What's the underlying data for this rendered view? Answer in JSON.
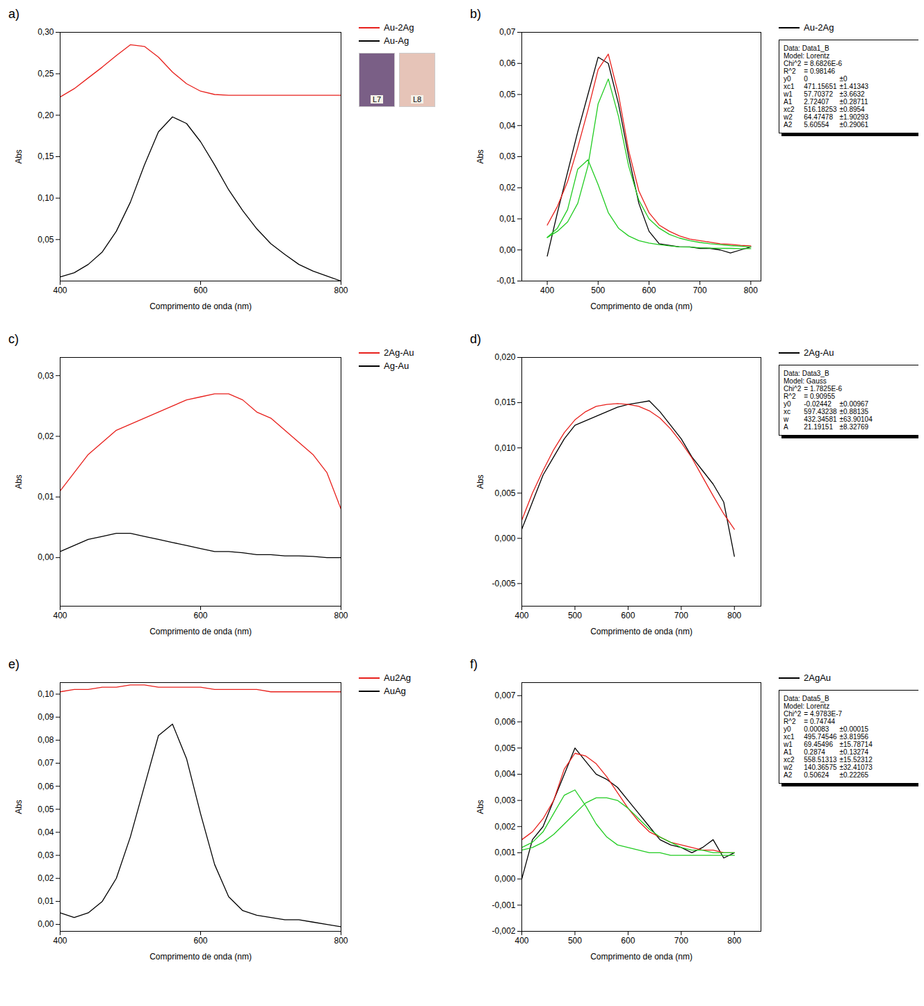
{
  "chart_data": [
    {
      "type": "line",
      "panel": "a)",
      "x_label": "Comprimento de onda (nm)",
      "y_label": "Abs",
      "legend": "right",
      "inset": {
        "labels": [
          "L7",
          "L8"
        ]
      },
      "x": [
        400,
        420,
        440,
        460,
        480,
        500,
        520,
        540,
        560,
        580,
        600,
        620,
        640,
        660,
        680,
        700,
        720,
        740,
        760,
        780,
        800
      ],
      "xlim": [
        400,
        800
      ],
      "xticks": [
        400,
        600,
        800
      ],
      "ylim": [
        0,
        0.3
      ],
      "yticks": [
        {
          "value": 0.05,
          "label": "0,05"
        },
        {
          "value": 0.1,
          "label": "0,10"
        },
        {
          "value": 0.15,
          "label": "0,15"
        },
        {
          "value": 0.2,
          "label": "0,20"
        },
        {
          "value": 0.25,
          "label": "0,25"
        },
        {
          "value": 0.3,
          "label": "0,30"
        }
      ],
      "series": [
        {
          "name": "Au-2Ag",
          "color": "#e8201c",
          "values": [
            0.222,
            0.232,
            0.245,
            0.258,
            0.272,
            0.285,
            0.283,
            0.27,
            0.252,
            0.238,
            0.229,
            0.225,
            0.224,
            0.224,
            0.224,
            0.224,
            0.224,
            0.224,
            0.224,
            0.224,
            0.224
          ]
        },
        {
          "name": "Au-Ag",
          "color": "#000000",
          "values": [
            0.005,
            0.01,
            0.02,
            0.035,
            0.06,
            0.095,
            0.14,
            0.18,
            0.198,
            0.19,
            0.168,
            0.14,
            0.11,
            0.085,
            0.063,
            0.045,
            0.032,
            0.02,
            0.012,
            0.006,
            0
          ]
        }
      ]
    },
    {
      "type": "line",
      "panel": "b)",
      "x_label": "Comprimento de onda (nm)",
      "y_label": "Abs",
      "legend": "right",
      "fit": [
        [
          "Data: Data1_B"
        ],
        [
          "Model: Lorentz"
        ],
        [
          "Chi^2",
          "= 8.6826E-6"
        ],
        [
          "R^2",
          "= 0.98146"
        ],
        [
          "y0",
          "0",
          "±0"
        ],
        [
          "xc1",
          "471.15651",
          "±1.41343"
        ],
        [
          "w1",
          "57.70372",
          "±3.6632"
        ],
        [
          "A1",
          "2.72407",
          "±0.28711"
        ],
        [
          "xc2",
          "516.18253",
          "±0.8954"
        ],
        [
          "w2",
          "64.47478",
          "±1.90293"
        ],
        [
          "A2",
          "5.60554",
          "±0.29061"
        ]
      ],
      "x": [
        400,
        420,
        440,
        460,
        480,
        500,
        520,
        540,
        560,
        580,
        600,
        620,
        640,
        660,
        680,
        700,
        720,
        740,
        760,
        780,
        800
      ],
      "xlim": [
        350,
        820
      ],
      "xticks": [
        400,
        500,
        600,
        700,
        800
      ],
      "ylim": [
        -0.01,
        0.07
      ],
      "yticks": [
        {
          "value": -0.01,
          "label": "-0,01"
        },
        {
          "value": 0,
          "label": "0,00"
        },
        {
          "value": 0.01,
          "label": "0,01"
        },
        {
          "value": 0.02,
          "label": "0,02"
        },
        {
          "value": 0.03,
          "label": "0,03"
        },
        {
          "value": 0.04,
          "label": "0,04"
        },
        {
          "value": 0.05,
          "label": "0,05"
        },
        {
          "value": 0.06,
          "label": "0,06"
        },
        {
          "value": 0.07,
          "label": "0,07"
        }
      ],
      "series": [
        {
          "name": "Au-2Ag",
          "color": "#000000",
          "values": [
            -0.002,
            0.012,
            0.025,
            0.038,
            0.05,
            0.062,
            0.06,
            0.047,
            0.03,
            0.015,
            0.006,
            0.002,
            0.0015,
            0.001,
            0.001,
            0.0005,
            0.0005,
            0,
            -0.001,
            0,
            0.001
          ]
        },
        {
          "color": "#e8201c",
          "values": [
            0.008,
            0.014,
            0.022,
            0.033,
            0.045,
            0.058,
            0.063,
            0.05,
            0.032,
            0.019,
            0.012,
            0.008,
            0.006,
            0.0045,
            0.0035,
            0.003,
            0.0025,
            0.002,
            0.0018,
            0.0015,
            0.0013
          ]
        },
        {
          "color": "#22cc22",
          "values": [
            0.004,
            0.007,
            0.013,
            0.026,
            0.029,
            0.021,
            0.012,
            0.007,
            0.0045,
            0.003,
            0.0022,
            0.0017,
            0.0013,
            0.001,
            0.0009,
            0.0007,
            0.0006,
            0.0005,
            0.0005,
            0.0004,
            0.0004
          ]
        },
        {
          "color": "#22cc22",
          "values": [
            0.004,
            0.006,
            0.009,
            0.015,
            0.027,
            0.047,
            0.055,
            0.043,
            0.027,
            0.016,
            0.01,
            0.007,
            0.005,
            0.0038,
            0.003,
            0.0024,
            0.002,
            0.0017,
            0.0014,
            0.0012,
            0.001
          ]
        }
      ]
    },
    {
      "type": "line",
      "panel": "c)",
      "x_label": "Comprimento de onda (nm)",
      "y_label": "Abs",
      "legend": "right",
      "x": [
        400,
        420,
        440,
        460,
        480,
        500,
        520,
        540,
        560,
        580,
        600,
        620,
        640,
        660,
        680,
        700,
        720,
        740,
        760,
        780,
        800
      ],
      "xlim": [
        400,
        800
      ],
      "xticks": [
        400,
        600,
        800
      ],
      "ylim": [
        -0.008,
        0.033
      ],
      "yticks": [
        {
          "value": 0,
          "label": "0,00"
        },
        {
          "value": 0.01,
          "label": "0,01"
        },
        {
          "value": 0.02,
          "label": "0,02"
        },
        {
          "value": 0.03,
          "label": "0,03"
        }
      ],
      "series": [
        {
          "name": "2Ag-Au",
          "color": "#e8201c",
          "values": [
            0.011,
            0.014,
            0.017,
            0.019,
            0.021,
            0.022,
            0.023,
            0.024,
            0.025,
            0.026,
            0.0265,
            0.027,
            0.027,
            0.026,
            0.024,
            0.023,
            0.021,
            0.019,
            0.017,
            0.014,
            0.008
          ]
        },
        {
          "name": "Ag-Au",
          "color": "#000000",
          "values": [
            0.001,
            0.002,
            0.003,
            0.0035,
            0.004,
            0.004,
            0.0035,
            0.003,
            0.0025,
            0.002,
            0.0015,
            0.001,
            0.001,
            0.0008,
            0.0005,
            0.0005,
            0.0003,
            0.0003,
            0.0002,
            0,
            0
          ]
        }
      ]
    },
    {
      "type": "line",
      "panel": "d)",
      "x_label": "Comprimento de onda (nm)",
      "y_label": "Abs",
      "legend": "right",
      "fit": [
        [
          "Data: Data3_B"
        ],
        [
          "Model: Gauss"
        ],
        [
          "Chi^2",
          "= 1.7825E-6"
        ],
        [
          "R^2",
          "= 0.90955"
        ],
        [
          "y0",
          "-0.02442",
          "±0.00967"
        ],
        [
          "xc",
          "597.43238",
          "±0.88135"
        ],
        [
          "w",
          "432.34581",
          "±63.90104"
        ],
        [
          "A",
          "21.19151",
          "±8.32769"
        ]
      ],
      "x": [
        400,
        420,
        440,
        460,
        480,
        500,
        520,
        540,
        560,
        580,
        600,
        620,
        640,
        660,
        680,
        700,
        720,
        740,
        760,
        780,
        800
      ],
      "xlim": [
        400,
        850
      ],
      "xticks": [
        400,
        500,
        600,
        700,
        800
      ],
      "ylim": [
        -0.0075,
        0.02
      ],
      "yticks": [
        {
          "value": -0.005,
          "label": "-0,005"
        },
        {
          "value": 0,
          "label": "0,000"
        },
        {
          "value": 0.005,
          "label": "0,005"
        },
        {
          "value": 0.01,
          "label": "0,010"
        },
        {
          "value": 0.015,
          "label": "0,015"
        },
        {
          "value": 0.02,
          "label": "0,020"
        }
      ],
      "series": [
        {
          "name": "2Ag-Au",
          "color": "#000000",
          "values": [
            0.001,
            0.004,
            0.007,
            0.009,
            0.011,
            0.0125,
            0.013,
            0.0135,
            0.014,
            0.0145,
            0.0148,
            0.015,
            0.0152,
            0.014,
            0.0125,
            0.011,
            0.009,
            0.0075,
            0.006,
            0.004,
            -0.002
          ]
        },
        {
          "color": "#e8201c",
          "values": [
            0.002,
            0.005,
            0.0075,
            0.0098,
            0.0117,
            0.0131,
            0.014,
            0.0146,
            0.0148,
            0.0149,
            0.0148,
            0.0146,
            0.0141,
            0.0133,
            0.0121,
            0.0106,
            0.0089,
            0.0068,
            0.0047,
            0.0027,
            0.001
          ]
        }
      ]
    },
    {
      "type": "line",
      "panel": "e)",
      "x_label": "Comprimento de onda (nm)",
      "y_label": "Abs",
      "legend": "right",
      "x": [
        400,
        420,
        440,
        460,
        480,
        500,
        520,
        540,
        560,
        580,
        600,
        620,
        640,
        660,
        680,
        700,
        720,
        740,
        760,
        780,
        800
      ],
      "xlim": [
        400,
        800
      ],
      "xticks": [
        400,
        600,
        800
      ],
      "ylim": [
        -0.003,
        0.105
      ],
      "yticks": [
        {
          "value": 0,
          "label": "0,00"
        },
        {
          "value": 0.01,
          "label": "0,01"
        },
        {
          "value": 0.02,
          "label": "0,02"
        },
        {
          "value": 0.03,
          "label": "0,03"
        },
        {
          "value": 0.04,
          "label": "0,04"
        },
        {
          "value": 0.05,
          "label": "0,05"
        },
        {
          "value": 0.06,
          "label": "0,06"
        },
        {
          "value": 0.07,
          "label": "0,07"
        },
        {
          "value": 0.08,
          "label": "0,08"
        },
        {
          "value": 0.09,
          "label": "0,09"
        },
        {
          "value": 0.1,
          "label": "0,10"
        }
      ],
      "series": [
        {
          "name": "Au2Ag",
          "color": "#e8201c",
          "values": [
            0.101,
            0.102,
            0.102,
            0.103,
            0.103,
            0.104,
            0.104,
            0.103,
            0.103,
            0.103,
            0.103,
            0.102,
            0.102,
            0.102,
            0.102,
            0.101,
            0.101,
            0.101,
            0.101,
            0.101,
            0.101
          ]
        },
        {
          "name": "AuAg",
          "color": "#000000",
          "values": [
            0.005,
            0.003,
            0.005,
            0.01,
            0.02,
            0.038,
            0.06,
            0.082,
            0.087,
            0.072,
            0.048,
            0.026,
            0.012,
            0.006,
            0.004,
            0.003,
            0.002,
            0.002,
            0.001,
            0,
            -0.001
          ]
        }
      ]
    },
    {
      "type": "line",
      "panel": "f)",
      "x_label": "Comprimento de onda (nm)",
      "y_label": "Abs",
      "legend": "right",
      "fit": [
        [
          "Data: Data5_B"
        ],
        [
          "Model: Lorentz"
        ],
        [
          "Chi^2",
          "= 4.9783E-7"
        ],
        [
          "R^2",
          "= 0.74744"
        ],
        [
          "y0",
          "0.00083",
          "±0.00015"
        ],
        [
          "xc1",
          "495.74546",
          "±3.81956"
        ],
        [
          "w1",
          "69.45496",
          "±15.78714"
        ],
        [
          "A1",
          "0.2874",
          "±0.13274"
        ],
        [
          "xc2",
          "558.51313",
          "±15.52312"
        ],
        [
          "w2",
          "140.36575",
          "±32.41073"
        ],
        [
          "A2",
          "0.50624",
          "±0.22265"
        ]
      ],
      "x": [
        400,
        420,
        440,
        460,
        480,
        500,
        520,
        540,
        560,
        580,
        600,
        620,
        640,
        660,
        680,
        700,
        720,
        740,
        760,
        780,
        800
      ],
      "xlim": [
        400,
        850
      ],
      "xticks": [
        400,
        500,
        600,
        700,
        800
      ],
      "ylim": [
        -0.002,
        0.0075
      ],
      "yticks": [
        {
          "value": -0.002,
          "label": "-0,002"
        },
        {
          "value": -0.001,
          "label": "-0,001"
        },
        {
          "value": 0,
          "label": "0,000"
        },
        {
          "value": 0.001,
          "label": "0,001"
        },
        {
          "value": 0.002,
          "label": "0,002"
        },
        {
          "value": 0.003,
          "label": "0,003"
        },
        {
          "value": 0.004,
          "label": "0,004"
        },
        {
          "value": 0.005,
          "label": "0,005"
        },
        {
          "value": 0.006,
          "label": "0,006"
        },
        {
          "value": 0.007,
          "label": "0,007"
        }
      ],
      "series": [
        {
          "name": "2AgAu",
          "color": "#000000",
          "values": [
            0,
            0.0015,
            0.002,
            0.003,
            0.004,
            0.005,
            0.0045,
            0.004,
            0.0038,
            0.0035,
            0.003,
            0.0025,
            0.002,
            0.0015,
            0.0013,
            0.0012,
            0.001,
            0.0012,
            0.0015,
            0.0008,
            0.001
          ]
        },
        {
          "color": "#e8201c",
          "values": [
            0.0015,
            0.0018,
            0.0023,
            0.003,
            0.0042,
            0.0048,
            0.0047,
            0.0044,
            0.0039,
            0.0033,
            0.0027,
            0.0022,
            0.0018,
            0.0016,
            0.0014,
            0.0013,
            0.0012,
            0.0011,
            0.0011,
            0.001,
            0.001
          ]
        },
        {
          "color": "#22cc22",
          "values": [
            0.0012,
            0.0014,
            0.0018,
            0.0025,
            0.0032,
            0.0034,
            0.0028,
            0.0021,
            0.0016,
            0.0013,
            0.0012,
            0.0011,
            0.001,
            0.001,
            0.0009,
            0.0009,
            0.0009,
            0.0009,
            0.0009,
            0.0009,
            0.0009
          ]
        },
        {
          "color": "#22cc22",
          "values": [
            0.0011,
            0.0012,
            0.0014,
            0.0017,
            0.0021,
            0.0025,
            0.0029,
            0.0031,
            0.0031,
            0.003,
            0.0027,
            0.0023,
            0.0019,
            0.0016,
            0.0014,
            0.0012,
            0.0011,
            0.0011,
            0.001,
            0.001,
            0.001
          ]
        }
      ]
    }
  ]
}
